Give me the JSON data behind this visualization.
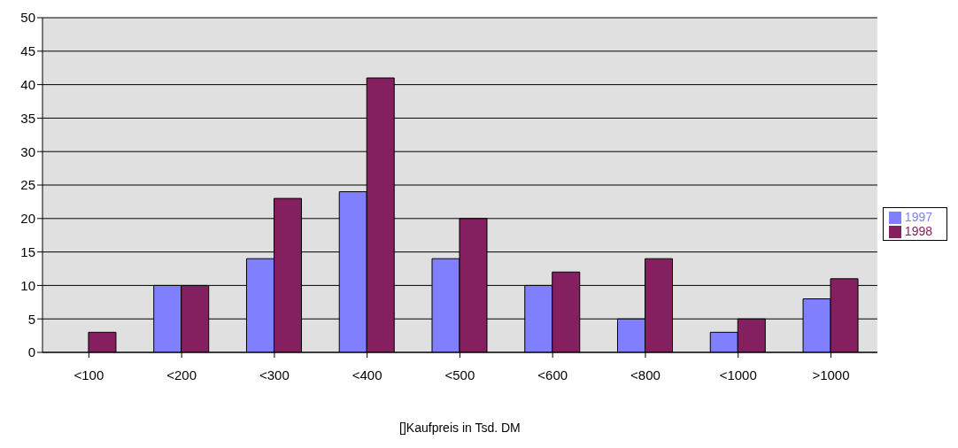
{
  "chart_data": {
    "type": "bar",
    "xlabel": "[]Kaufpreis in Tsd. DM",
    "categories": [
      "<100",
      "<200",
      "<300",
      "<400",
      "<500",
      "<600",
      "<800",
      "<1000",
      ">1000"
    ],
    "series": [
      {
        "name": "1997",
        "color": "#8080ff",
        "values": [
          0,
          10,
          14,
          24,
          14,
          10,
          5,
          3,
          8
        ]
      },
      {
        "name": "1998",
        "color": "#84205f",
        "values": [
          3,
          10,
          23,
          41,
          20,
          12,
          14,
          5,
          11
        ]
      }
    ],
    "ylim": [
      0,
      50
    ],
    "yticks": [
      0,
      5,
      10,
      15,
      20,
      25,
      30,
      35,
      40,
      45,
      50
    ],
    "grid": "y",
    "legend": "right"
  }
}
